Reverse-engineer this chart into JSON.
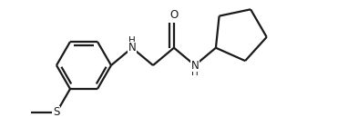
{
  "bg_color": "#ffffff",
  "line_color": "#1a1a1a",
  "bond_width": 1.6,
  "figsize": [
    3.82,
    1.4
  ],
  "dpi": 100,
  "xlim": [
    0,
    3.82
  ],
  "ylim": [
    0,
    1.4
  ]
}
